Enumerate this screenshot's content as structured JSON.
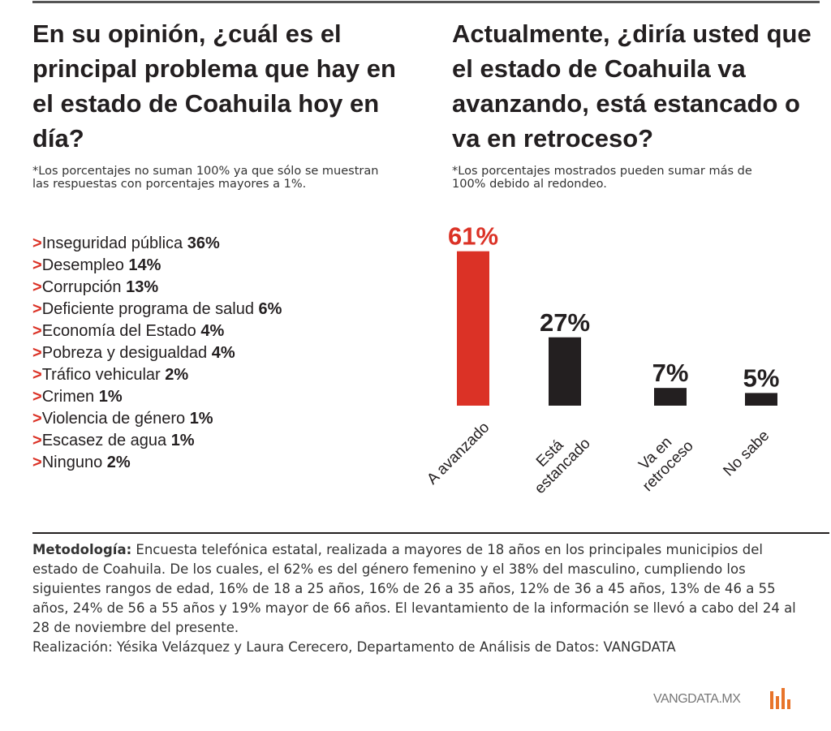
{
  "left": {
    "title": "En su opinión, ¿cuál es el principal problema que hay en el estado de Coahuila hoy en día?",
    "note": "*Los porcentajes no suman 100% ya que sólo se muestran las respuestas con porcentajes mayores a 1%.",
    "marker": ">",
    "items": [
      {
        "label": "Inseguridad pública",
        "value": "36%"
      },
      {
        "label": "Desempleo",
        "value": "14%"
      },
      {
        "label": "Corrupción",
        "value": "13%"
      },
      {
        "label": "Deficiente programa de salud",
        "value": "6%"
      },
      {
        "label": "Economía del Estado",
        "value": "4%"
      },
      {
        "label": "Pobreza y desigualdad",
        "value": "4%"
      },
      {
        "label": "Tráfico vehicular",
        "value": "2%"
      },
      {
        "label": "Crimen",
        "value": "1%"
      },
      {
        "label": "Violencia de género",
        "value": "1%"
      },
      {
        "label": "Escasez de agua",
        "value": "1%"
      },
      {
        "label": "Ninguno",
        "value": "2%"
      }
    ]
  },
  "chart_data": {
    "type": "bar",
    "title": "Actualmente, ¿diría usted que el estado de Coahuila va avanzando, está estancado o va en retroceso?",
    "subtitle": "*Los porcentajes mostrados pueden sumar más de 100% debido al redondeo.",
    "categories": [
      "A avanzado",
      "Está estancado",
      "Va en retroceso",
      "No sabe"
    ],
    "values": [
      61,
      27,
      7,
      5
    ],
    "value_labels": [
      "61%",
      "27%",
      "7%",
      "5%"
    ],
    "colors": [
      "#db3226",
      "#231f20",
      "#231f20",
      "#231f20"
    ]
  },
  "methodology": {
    "label": "Metodología:",
    "text": "Encuesta telefónica estatal, realizada a mayores de 18 años en los principales municipios del estado de Coahuila. De los cuales, el 62% es del género femenino y el 38% del masculino, cumpliendo los siguientes rangos de edad, 16% de 18 a 25 años, 16% de 26 a 35 años, 12% de 36 a 45 años, 13% de 46 a 55 años, 24% de 56 a 55 años y 19% mayor de 66 años. El levantamiento de la información se llevó a cabo del 24 al 28 de noviembre del presente.",
    "credits": "Realización: Yésika Velázquez y Laura Cerecero, Departamento de Análisis de Datos: VANGDATA"
  },
  "footer": {
    "brand": "VANGDATA.MX"
  }
}
